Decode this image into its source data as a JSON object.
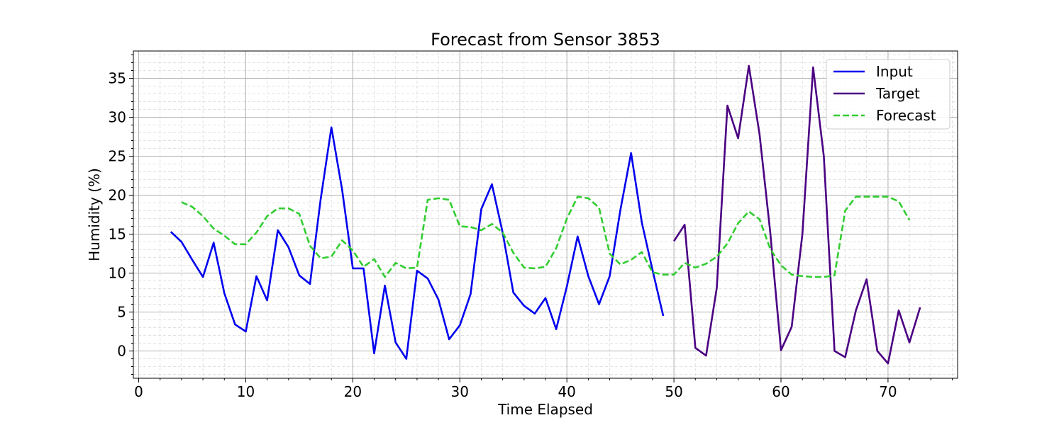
{
  "chart_data": {
    "type": "line",
    "title": "Forecast from Sensor 3853",
    "xlabel": "Time Elapsed",
    "ylabel": "Humidity (%)",
    "xlim": [
      -0.5,
      76.5
    ],
    "ylim": [
      -3.5,
      38.5
    ],
    "x_ticks": [
      0,
      10,
      20,
      30,
      40,
      50,
      60,
      70
    ],
    "y_ticks": [
      0,
      5,
      10,
      15,
      20,
      25,
      30,
      35
    ],
    "grid": true,
    "minor_grid": true,
    "legend_position": "top-right",
    "series": [
      {
        "name": "Input",
        "color": "#0000ee",
        "style": "solid",
        "x": [
          3,
          4,
          5,
          6,
          7,
          8,
          9,
          10,
          11,
          12,
          13,
          14,
          15,
          16,
          17,
          18,
          19,
          20,
          21,
          22,
          23,
          24,
          25,
          26,
          27,
          28,
          29,
          30,
          31,
          32,
          33,
          34,
          35,
          36,
          37,
          38,
          39,
          40,
          41,
          42,
          43,
          44,
          45,
          46,
          47,
          48,
          49
        ],
        "values": [
          15.3,
          14.0,
          11.7,
          9.5,
          13.9,
          7.4,
          3.4,
          2.5,
          9.6,
          6.5,
          15.5,
          13.3,
          9.7,
          8.6,
          19.5,
          28.7,
          20.7,
          10.6,
          10.6,
          -0.3,
          8.4,
          1.1,
          -1.0,
          10.3,
          9.3,
          6.6,
          1.5,
          3.3,
          7.3,
          18.2,
          21.4,
          15.2,
          7.5,
          5.8,
          4.8,
          6.8,
          2.8,
          8.3,
          14.7,
          9.6,
          6.0,
          9.6,
          18.1,
          25.4,
          16.5,
          10.4,
          4.5
        ]
      },
      {
        "name": "Target",
        "color": "#4b0082",
        "style": "solid",
        "x": [
          50,
          51,
          52,
          53,
          54,
          55,
          56,
          57,
          58,
          59,
          60,
          61,
          62,
          63,
          64,
          65,
          66,
          67,
          68,
          69,
          70,
          71,
          72,
          73
        ],
        "values": [
          14.1,
          16.2,
          0.4,
          -0.6,
          8.1,
          31.5,
          27.3,
          36.6,
          27.8,
          15.2,
          0.1,
          3.1,
          15.0,
          36.4,
          25.0,
          0.0,
          -0.8,
          5.2,
          9.2,
          0.0,
          -1.6,
          5.2,
          1.1,
          5.6
        ]
      },
      {
        "name": "Forecast",
        "color": "#32cd32",
        "style": "dashed",
        "x": [
          4,
          5,
          6,
          7,
          8,
          9,
          10,
          11,
          12,
          13,
          14,
          15,
          16,
          17,
          18,
          19,
          20,
          21,
          22,
          23,
          24,
          25,
          26,
          27,
          28,
          29,
          30,
          31,
          32,
          33,
          34,
          35,
          36,
          37,
          38,
          39,
          40,
          41,
          42,
          43,
          44,
          45,
          46,
          47,
          48,
          49,
          50,
          51,
          52,
          53,
          54,
          55,
          56,
          57,
          58,
          59,
          60,
          61,
          62,
          63,
          64,
          65,
          66,
          67,
          68,
          69,
          70,
          71,
          72
        ],
        "values": [
          19.1,
          18.5,
          17.3,
          15.7,
          14.8,
          13.7,
          13.7,
          15.2,
          17.3,
          18.3,
          18.3,
          17.6,
          13.5,
          11.9,
          12.1,
          14.2,
          12.9,
          10.8,
          11.8,
          9.5,
          11.3,
          10.6,
          10.7,
          19.4,
          19.6,
          19.4,
          16.0,
          15.9,
          15.5,
          16.3,
          15.2,
          12.6,
          10.7,
          10.6,
          10.8,
          13.2,
          17.0,
          19.8,
          19.6,
          18.4,
          12.5,
          11.1,
          11.7,
          12.7,
          10.1,
          9.8,
          9.8,
          11.3,
          10.7,
          11.2,
          12.1,
          13.8,
          16.4,
          17.9,
          16.9,
          13.1,
          11.0,
          9.8,
          9.6,
          9.5,
          9.5,
          9.7,
          18.0,
          19.8,
          19.8,
          19.8,
          19.8,
          19.2,
          16.8
        ]
      }
    ]
  }
}
